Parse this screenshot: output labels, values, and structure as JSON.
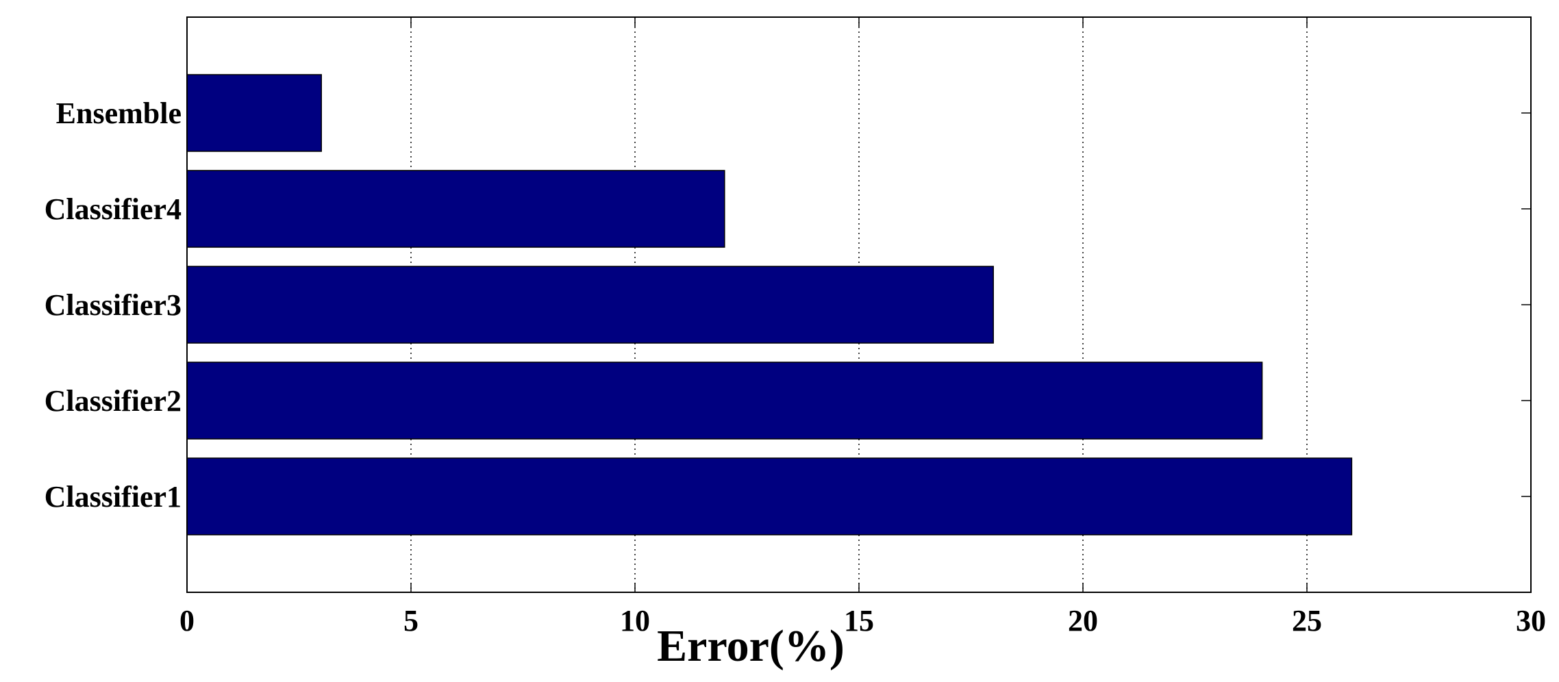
{
  "chart_data": {
    "type": "bar",
    "orientation": "horizontal",
    "xlabel": "Error(%)",
    "categories": [
      "Classifier1",
      "Classifier2",
      "Classifier3",
      "Classifier4",
      "Ensemble"
    ],
    "values": [
      26,
      24,
      18,
      12,
      3
    ],
    "color": "#000080",
    "xlim": [
      0,
      30
    ],
    "xticks": [
      0,
      5,
      10,
      15,
      20,
      25,
      30
    ],
    "grid": true
  }
}
